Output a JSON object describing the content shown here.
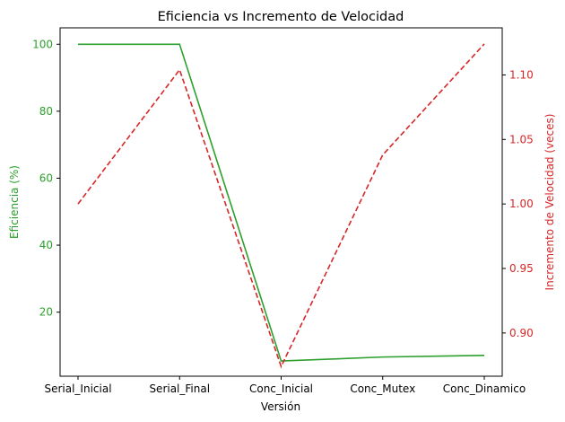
{
  "chart_data": {
    "type": "line",
    "title": "Eficiencia vs Incremento de Velocidad",
    "xlabel": "Versión",
    "categories": [
      "Serial_Inicial",
      "Serial_Final",
      "Conc_Inicial",
      "Conc_Mutex",
      "Conc_Dinamico"
    ],
    "y_left": {
      "label": "Eficiencia (%)",
      "color": "#2ca02c",
      "ylim": [
        0.87,
        104.9
      ],
      "ticks": [
        20,
        40,
        60,
        80,
        100
      ]
    },
    "y_right": {
      "label": "Incremento de Velocidad (veces)",
      "color": "#d62728",
      "ylim": [
        0.8665,
        1.1365
      ],
      "ticks": [
        "0.90",
        "0.95",
        "1.00",
        "1.05",
        "1.10"
      ]
    },
    "series": [
      {
        "axis": "left",
        "color": "#2ca02c",
        "style": "solid",
        "values": [
          100,
          100,
          5.4,
          6.6,
          7.1
        ]
      },
      {
        "axis": "right",
        "color": "#d62728",
        "style": "dashed",
        "values": [
          1.0,
          1.104,
          0.874,
          1.038,
          1.124
        ]
      }
    ],
    "grid": false,
    "legend": "none"
  }
}
